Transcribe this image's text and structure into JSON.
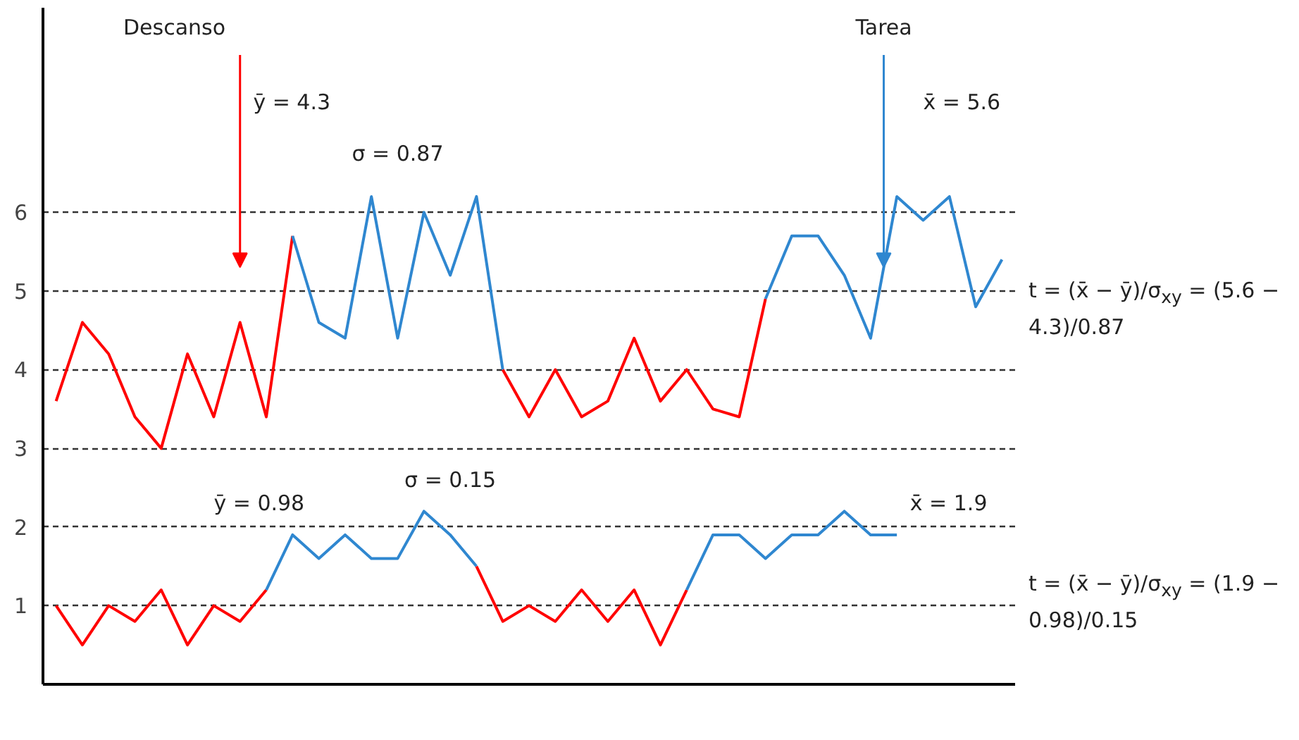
{
  "chart_data": {
    "type": "line",
    "categories": [
      null,
      null,
      null,
      null,
      null,
      null,
      null,
      null,
      null,
      null,
      null,
      null,
      null,
      null,
      null,
      null,
      null,
      null,
      null,
      null,
      null,
      null,
      null,
      null,
      null,
      null,
      null,
      null,
      null,
      null,
      null,
      null,
      null,
      null,
      null,
      null,
      null
    ],
    "series": [
      {
        "color": "#ff0000",
        "values": [
          3.6,
          4.6,
          4.2,
          3.4,
          3.0,
          4.2,
          3.4,
          4.6,
          3.4,
          5.7,
          null,
          null,
          null,
          null,
          null,
          null,
          null,
          null,
          null,
          null,
          null,
          null,
          null,
          null,
          null,
          null,
          null,
          null,
          null,
          null,
          null,
          null,
          null,
          null,
          null,
          null,
          null
        ]
      },
      {
        "color": "#2f87d0",
        "values": [
          null,
          null,
          null,
          null,
          null,
          null,
          null,
          null,
          null,
          5.7,
          4.6,
          4.4,
          6.2,
          4.4,
          6.0,
          5.2,
          6.2,
          4.0,
          null,
          null,
          null,
          null,
          null,
          null,
          null,
          null,
          null,
          null,
          null,
          null,
          null,
          null,
          null,
          null,
          null,
          null,
          null
        ]
      },
      {
        "color": "#ff0000",
        "values": [
          null,
          null,
          null,
          null,
          null,
          null,
          null,
          null,
          null,
          null,
          null,
          null,
          null,
          null,
          null,
          null,
          null,
          4.0,
          3.4,
          4.0,
          3.4,
          3.6,
          4.4,
          3.6,
          4.0,
          3.5,
          3.4,
          4.9,
          null,
          null,
          null,
          null,
          null,
          null,
          null,
          null,
          null
        ]
      },
      {
        "color": "#2f87d0",
        "values": [
          null,
          null,
          null,
          null,
          null,
          null,
          null,
          null,
          null,
          null,
          null,
          null,
          null,
          null,
          null,
          null,
          null,
          null,
          null,
          null,
          null,
          null,
          null,
          null,
          null,
          null,
          null,
          4.9,
          5.7,
          5.7,
          5.2,
          4.4,
          6.2,
          5.9,
          6.2,
          4.8,
          5.4
        ]
      },
      {
        "color": "#ff0000",
        "values": [
          1.0,
          0.5,
          1.0,
          0.8,
          1.2,
          0.5,
          1.0,
          0.8,
          1.2,
          null,
          null,
          null,
          null,
          null,
          null,
          null,
          null,
          null,
          null,
          null,
          null,
          null,
          null,
          null,
          null,
          null,
          null,
          null,
          null,
          null,
          null,
          null,
          null,
          null,
          null,
          null,
          null
        ]
      },
      {
        "color": "#2f87d0",
        "values": [
          null,
          null,
          null,
          null,
          null,
          null,
          null,
          null,
          1.2,
          1.9,
          1.6,
          1.9,
          1.6,
          1.6,
          2.2,
          1.9,
          1.5,
          null,
          null,
          null,
          null,
          null,
          null,
          null,
          null,
          null,
          null,
          null,
          null,
          null,
          null,
          null,
          null,
          null,
          null,
          null,
          null
        ]
      },
      {
        "color": "#ff0000",
        "values": [
          null,
          null,
          null,
          null,
          null,
          null,
          null,
          null,
          null,
          null,
          null,
          null,
          null,
          null,
          null,
          null,
          1.5,
          0.8,
          1.0,
          0.8,
          1.2,
          0.8,
          1.2,
          0.5,
          1.2,
          null,
          null,
          null,
          null,
          null,
          null,
          null,
          null,
          null,
          null,
          null,
          null
        ]
      },
      {
        "color": "#2f87d0",
        "values": [
          null,
          null,
          null,
          null,
          null,
          null,
          null,
          null,
          null,
          null,
          null,
          null,
          null,
          null,
          null,
          null,
          null,
          null,
          null,
          null,
          null,
          null,
          null,
          null,
          1.2,
          1.9,
          1.9,
          1.6,
          1.9,
          1.9,
          2.2,
          1.9,
          1.9,
          null,
          null,
          null,
          null
        ]
      }
    ],
    "ylim": [
      0,
      8.6
    ],
    "yticks": [
      1,
      2,
      3,
      4,
      5,
      6
    ],
    "grid": "y",
    "tick_labels": "y",
    "marker": "none",
    "line_style": "solid",
    "annotations": [
      "Descanso",
      "Tarea",
      "ȳ = 4.3",
      "σ = 0.87",
      "x̄ = 5.6",
      "t = (x̄ − ȳ)/σ$_{xy}$ = (5.6 − 4.3)/0.87",
      "ȳ = 0.98",
      "σ = 0.15",
      "x̄ = 1.9",
      "t = (x̄ − ȳ)/σ$_{xy}$ = (1.9 − 0.98)/0.15"
    ]
  }
}
